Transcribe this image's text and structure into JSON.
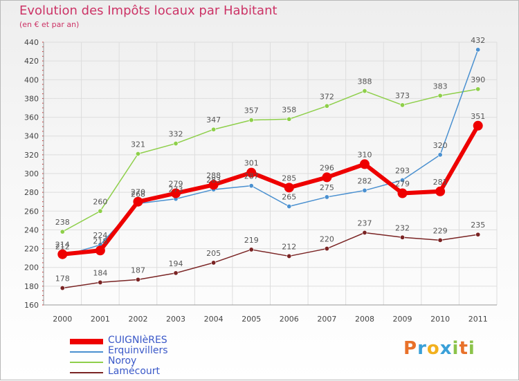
{
  "title": "Evolution des Impôts locaux par Habitant",
  "subtitle": "(en € et par an)",
  "logo": {
    "letters": [
      "P",
      "r",
      "o",
      "x",
      "i",
      "t",
      "i"
    ],
    "colors": [
      "#e8712a",
      "#3aa0d8",
      "#f2b01e",
      "#3aa0d8",
      "#8bc34a",
      "#e8712a",
      "#8bc34a"
    ]
  },
  "chart_data": {
    "type": "line",
    "x": [
      "2000",
      "2001",
      "2002",
      "2003",
      "2004",
      "2005",
      "2006",
      "2007",
      "2008",
      "2009",
      "2010",
      "2011"
    ],
    "ylim": [
      160,
      440
    ],
    "yticks": [
      "160",
      "180",
      "200",
      "220",
      "240",
      "260",
      "280",
      "300",
      "320",
      "340",
      "360",
      "380",
      "400",
      "420",
      "440"
    ],
    "grid": true,
    "legend_position": "bottom-left",
    "series": [
      {
        "name": "CUIGNIèRES",
        "color": "#ee0000",
        "values": [
          214,
          218,
          270,
          279,
          288,
          301,
          285,
          296,
          310,
          279,
          281,
          351
        ],
        "labels": [
          "214",
          "218",
          "270",
          "279",
          "288",
          "301",
          "285",
          "296",
          "310",
          "279",
          "281",
          "351"
        ]
      },
      {
        "name": "Erquinvillers",
        "color": "#4a90d0",
        "values": [
          212,
          224,
          268,
          273,
          283,
          287,
          265,
          275,
          282,
          293,
          320,
          432
        ],
        "labels": [
          "212",
          "224",
          "268",
          "273",
          "283",
          "287",
          "265",
          "275",
          "282",
          "293",
          "320",
          "432"
        ]
      },
      {
        "name": "Noroy",
        "color": "#8ecf4a",
        "values": [
          238,
          260,
          321,
          332,
          347,
          357,
          358,
          372,
          388,
          373,
          383,
          390
        ],
        "labels": [
          "238",
          "260",
          "321",
          "332",
          "347",
          "357",
          "358",
          "372",
          "388",
          "373",
          "383",
          "390"
        ]
      },
      {
        "name": "Lamécourt",
        "color": "#7a2424",
        "values": [
          178,
          184,
          187,
          194,
          205,
          219,
          212,
          220,
          237,
          232,
          229,
          235
        ],
        "labels": [
          "178",
          "184",
          "187",
          "194",
          "205",
          "219",
          "212",
          "220",
          "237",
          "232",
          "229",
          "235"
        ]
      }
    ]
  }
}
